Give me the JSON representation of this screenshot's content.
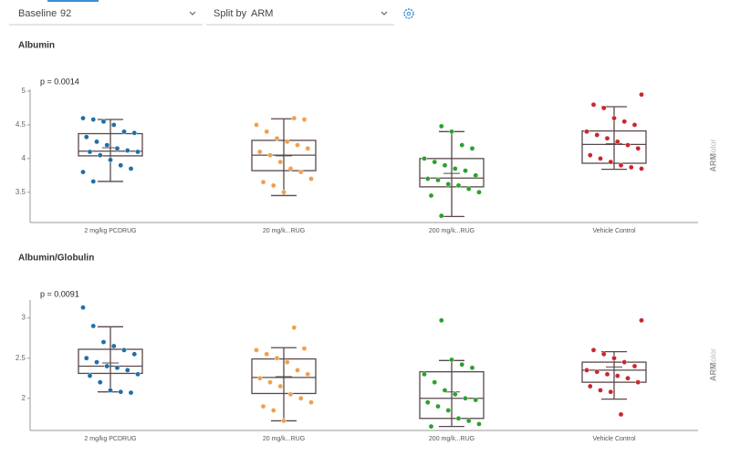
{
  "controls": {
    "baseline_label": "Baseline",
    "baseline_value": "92",
    "split_label": "Split by",
    "split_value": "ARM"
  },
  "chart_data": [
    {
      "type": "box",
      "title": "Albumin",
      "annotation": "p = 0.0014",
      "color_label": "Color",
      "color_by": "ARM",
      "categories": [
        "2 mg/kg PCDRUG",
        "20 mg/k...RUG",
        "200 mg/k...RUG",
        "Vehicle Control"
      ],
      "colors": [
        "#1f6fa8",
        "#f0a050",
        "#2ca02c",
        "#c8282c"
      ],
      "ylim": [
        3.05,
        5.0
      ],
      "yticks": [
        3.5,
        4,
        4.5,
        5
      ],
      "min": [
        3.66,
        3.45,
        3.14,
        3.84
      ],
      "q1": [
        4.04,
        3.82,
        3.58,
        3.93
      ],
      "median": [
        4.11,
        4.05,
        3.71,
        4.21
      ],
      "q3": [
        4.37,
        4.27,
        4.0,
        4.41
      ],
      "max": [
        4.58,
        4.59,
        4.4,
        4.77
      ],
      "mean": [
        4.16,
        4.04,
        3.78,
        4.22
      ],
      "points": [
        [
          4.6,
          4.58,
          4.55,
          4.5,
          4.4,
          4.38,
          4.32,
          4.25,
          4.2,
          4.15,
          4.12,
          4.1,
          4.1,
          4.05,
          3.98,
          3.9,
          3.85,
          3.8,
          3.66
        ],
        [
          4.6,
          4.58,
          4.5,
          4.4,
          4.3,
          4.25,
          4.2,
          4.15,
          4.1,
          4.05,
          3.95,
          3.85,
          3.8,
          3.7,
          3.65,
          3.6,
          3.5
        ],
        [
          4.48,
          4.4,
          4.2,
          4.15,
          4.0,
          3.95,
          3.9,
          3.85,
          3.82,
          3.75,
          3.7,
          3.68,
          3.62,
          3.6,
          3.55,
          3.5,
          3.45,
          3.15
        ],
        [
          4.95,
          4.8,
          4.75,
          4.6,
          4.55,
          4.5,
          4.4,
          4.35,
          4.3,
          4.25,
          4.2,
          4.15,
          4.05,
          4.0,
          3.95,
          3.9,
          3.87,
          3.85
        ]
      ]
    },
    {
      "type": "box",
      "title": "Albumin/Globulin",
      "annotation": "p = 0.0091",
      "color_label": "Color",
      "color_by": "ARM",
      "categories": [
        "2 mg/kg PCDRUG",
        "20 mg/k...RUG",
        "200 mg/k...RUG",
        "Vehicle Control"
      ],
      "colors": [
        "#1f6fa8",
        "#f0a050",
        "#2ca02c",
        "#c8282c"
      ],
      "ylim": [
        1.6,
        3.2
      ],
      "yticks": [
        2,
        2.5,
        3
      ],
      "min": [
        2.08,
        1.72,
        1.65,
        1.99
      ],
      "q1": [
        2.31,
        2.06,
        1.75,
        2.2
      ],
      "median": [
        2.4,
        2.26,
        2.0,
        2.35
      ],
      "q3": [
        2.61,
        2.49,
        2.33,
        2.45
      ],
      "max": [
        2.89,
        2.63,
        2.47,
        2.58
      ],
      "mean": [
        2.44,
        2.27,
        2.08,
        2.39
      ],
      "points": [
        [
          3.13,
          2.9,
          2.7,
          2.65,
          2.6,
          2.55,
          2.5,
          2.45,
          2.4,
          2.38,
          2.35,
          2.3,
          2.28,
          2.2,
          2.1,
          2.08,
          2.07
        ],
        [
          2.88,
          2.62,
          2.6,
          2.55,
          2.5,
          2.45,
          2.35,
          2.3,
          2.25,
          2.2,
          2.15,
          2.05,
          2.0,
          1.95,
          1.9,
          1.85,
          1.72
        ],
        [
          2.97,
          2.48,
          2.42,
          2.38,
          2.3,
          2.2,
          2.1,
          2.05,
          2.0,
          1.98,
          1.95,
          1.9,
          1.85,
          1.75,
          1.72,
          1.68,
          1.65
        ],
        [
          2.97,
          2.6,
          2.55,
          2.5,
          2.45,
          2.4,
          2.35,
          2.33,
          2.3,
          2.28,
          2.25,
          2.2,
          2.15,
          2.1,
          2.08,
          1.8
        ]
      ]
    }
  ]
}
